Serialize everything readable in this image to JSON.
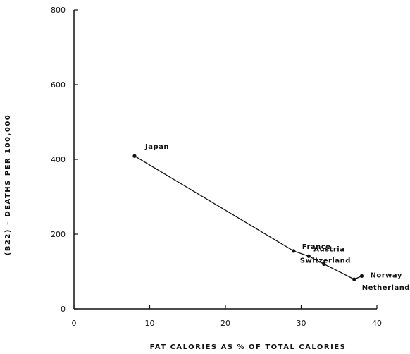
{
  "chart_data": {
    "type": "line",
    "title": "",
    "xlabel": "FAT CALORIES AS % OF TOTAL CALORIES",
    "ylabel": "(B22) – DEATHS PER 100,000",
    "xlim": [
      0,
      40
    ],
    "ylim": [
      0,
      800
    ],
    "xticks": [
      0,
      10,
      20,
      30,
      40
    ],
    "yticks": [
      0,
      200,
      400,
      600,
      800
    ],
    "grid": false,
    "series": [
      {
        "points": [
          {
            "x": 8,
            "y": 409,
            "label": "Japan"
          },
          {
            "x": 29,
            "y": 155,
            "label": "France"
          },
          {
            "x": 31,
            "y": 141,
            "label": "Austria"
          },
          {
            "x": 33,
            "y": 120,
            "label": "Switzerland"
          },
          {
            "x": 37,
            "y": 79,
            "label": "Netherlands"
          },
          {
            "x": 38,
            "y": 88,
            "label": "Norway"
          }
        ]
      }
    ]
  }
}
